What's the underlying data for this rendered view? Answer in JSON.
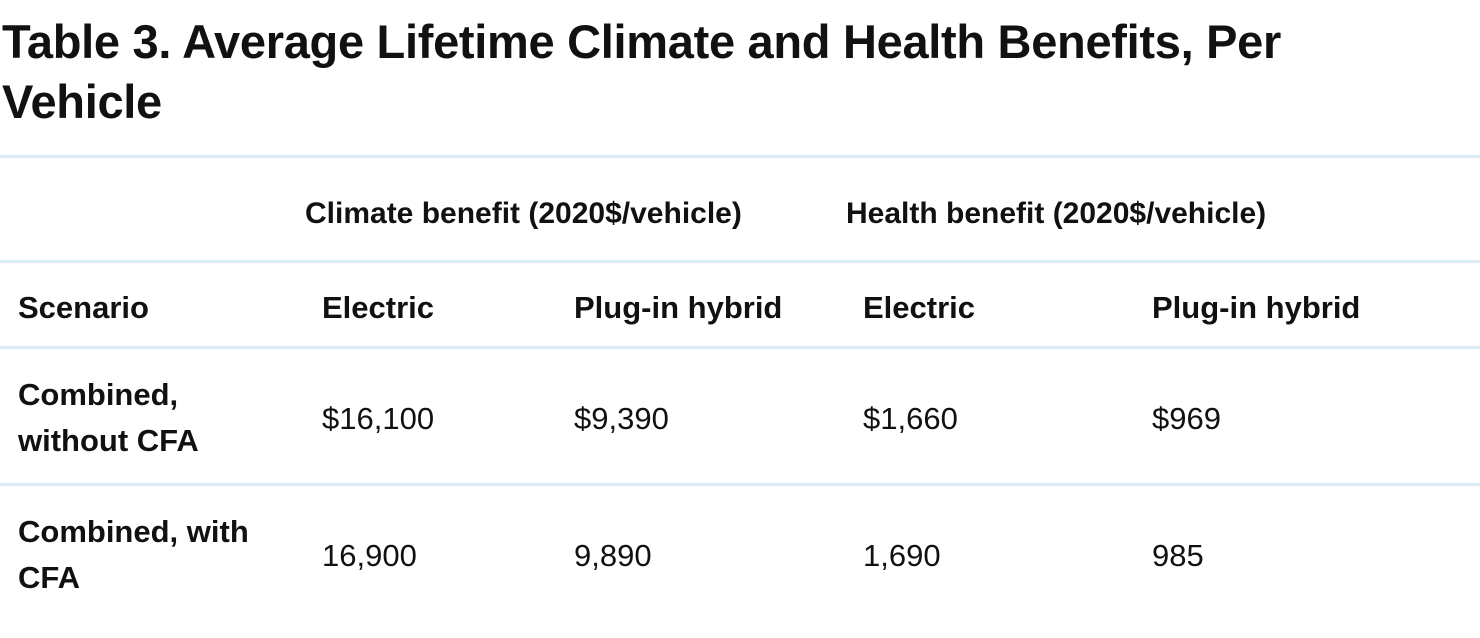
{
  "title": "Table 3.  Average Lifetime Climate and Health Benefits, Per Vehicle",
  "group_headers": {
    "climate": "Climate benefit (2020$/vehicle)",
    "health": "Health benefit (2020$/vehicle)"
  },
  "columns": {
    "scenario": "Scenario",
    "climate_electric": "Electric",
    "climate_phev": "Plug-in hybrid",
    "health_electric": "Electric",
    "health_phev": "Plug-in hybrid"
  },
  "rows": [
    {
      "scenario": "Combined, without CFA",
      "climate_electric": "$16,100",
      "climate_phev": "$9,390",
      "health_electric": "$1,660",
      "health_phev": "$969"
    },
    {
      "scenario": "Combined, with CFA",
      "climate_electric": "16,900",
      "climate_phev": "9,890",
      "health_electric": "1,690",
      "health_phev": "985"
    }
  ],
  "colors": {
    "rule": "#dcecf6",
    "text": "#111111"
  }
}
